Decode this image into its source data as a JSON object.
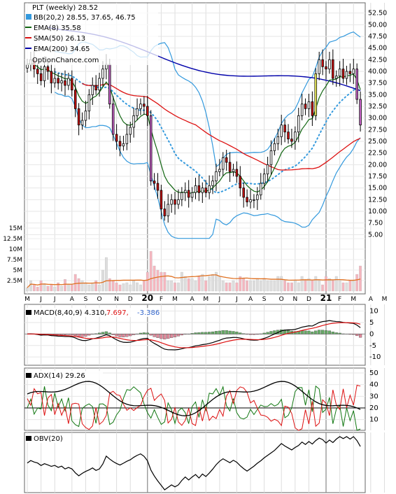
{
  "chart_data": [
    {
      "type": "candlestick",
      "panel": "price",
      "legend": {
        "title": "PLT (weekly) 28.52",
        "items": [
          {
            "label": "BB(20,2) 28.55, 37.65, 46.75",
            "color": "#3399dd",
            "marker": "square"
          },
          {
            "label": "EMA(8) 35.58",
            "color": "#116611",
            "marker": "line"
          },
          {
            "label": "SMA(50) 26.13",
            "color": "#dd1111",
            "marker": "line"
          },
          {
            "label": "EMA(200) 34.65",
            "color": "#0000aa",
            "marker": "line"
          }
        ],
        "watermark": "OptionChance.com"
      },
      "y_ticks": [
        "52.50",
        "50.00",
        "47.50",
        "45.00",
        "42.50",
        "40.00",
        "37.50",
        "35.00",
        "32.50",
        "30.00",
        "27.50",
        "25.00",
        "22.50",
        "20.00",
        "17.50",
        "15.00",
        "12.50",
        "10.00",
        "7.50",
        "5.00"
      ],
      "ylim": [
        4,
        53.5
      ],
      "x_labels": [
        {
          "label": "M",
          "week": 0
        },
        {
          "label": "J",
          "week": 4
        },
        {
          "label": "J",
          "week": 8
        },
        {
          "label": "A",
          "week": 13
        },
        {
          "label": "S",
          "week": 17
        },
        {
          "label": "O",
          "week": 21
        },
        {
          "label": "N",
          "week": 26
        },
        {
          "label": "D",
          "week": 30
        },
        {
          "label": "20",
          "week": 35,
          "bold": true
        },
        {
          "label": "F",
          "week": 39
        },
        {
          "label": "M",
          "week": 43
        },
        {
          "label": "A",
          "week": 48
        },
        {
          "label": "M",
          "week": 52
        },
        {
          "label": "J",
          "week": 56
        },
        {
          "label": "J",
          "week": 61
        },
        {
          "label": "A",
          "week": 65
        },
        {
          "label": "S",
          "week": 69
        },
        {
          "label": "O",
          "week": 74
        },
        {
          "label": "N",
          "week": 78
        },
        {
          "label": "D",
          "week": 82
        },
        {
          "label": "21",
          "week": 87,
          "bold": true
        },
        {
          "label": "F",
          "week": 91
        },
        {
          "label": "M",
          "week": 95
        },
        {
          "label": "A",
          "week": 100
        },
        {
          "label": "M",
          "week": 104
        }
      ],
      "candles": [
        {
          "c": 41.5
        },
        {
          "c": 42.5
        },
        {
          "c": 40.5
        },
        {
          "c": 39.5
        },
        {
          "c": 38.0
        },
        {
          "c": 41.0
        },
        {
          "c": 40.0
        },
        {
          "c": 37.5
        },
        {
          "c": 38.5
        },
        {
          "c": 37.5
        },
        {
          "c": 38.0
        },
        {
          "c": 37.0
        },
        {
          "c": 38.5
        },
        {
          "c": 36.0
        },
        {
          "c": 32.0
        },
        {
          "c": 28.5
        },
        {
          "c": 29.5
        },
        {
          "c": 31.5
        },
        {
          "c": 35.0
        },
        {
          "c": 37.0
        },
        {
          "c": 36.0
        },
        {
          "c": 38.5
        },
        {
          "c": 40.5
        },
        {
          "c": 41.5
        },
        {
          "c": 33.0
        },
        {
          "c": 26.5
        },
        {
          "c": 25.0
        },
        {
          "c": 24.0
        },
        {
          "c": 24.5
        },
        {
          "c": 26.5
        },
        {
          "c": 28.0
        },
        {
          "c": 30.5
        },
        {
          "c": 32.0
        },
        {
          "c": 33.0
        },
        {
          "c": 32.5
        },
        {
          "c": 30.5
        },
        {
          "c": 16.5
        },
        {
          "c": 16.0
        },
        {
          "c": 14.5
        },
        {
          "c": 10.5
        },
        {
          "c": 9.0
        },
        {
          "c": 11.5
        },
        {
          "c": 12.5
        },
        {
          "c": 11.5
        },
        {
          "c": 12.5
        },
        {
          "c": 14.0
        },
        {
          "c": 14.5
        },
        {
          "c": 13.0
        },
        {
          "c": 14.0
        },
        {
          "c": 15.5
        },
        {
          "c": 14.0
        },
        {
          "c": 15.0
        },
        {
          "c": 14.0
        },
        {
          "c": 15.5
        },
        {
          "c": 16.5
        },
        {
          "c": 18.5
        },
        {
          "c": 19.0
        },
        {
          "c": 21.5
        },
        {
          "c": 20.5
        },
        {
          "c": 18.5
        },
        {
          "c": 19.0
        },
        {
          "c": 17.5
        },
        {
          "c": 15.0
        },
        {
          "c": 13.0
        },
        {
          "c": 12.0
        },
        {
          "c": 12.5
        },
        {
          "c": 12.5
        },
        {
          "c": 13.5
        },
        {
          "c": 16.0
        },
        {
          "c": 18.0
        },
        {
          "c": 20.0
        },
        {
          "c": 23.0
        },
        {
          "c": 24.5
        },
        {
          "c": 26.0
        },
        {
          "c": 28.5
        },
        {
          "c": 27.0
        },
        {
          "c": 25.5
        },
        {
          "c": 25.0
        },
        {
          "c": 27.0
        },
        {
          "c": 30.5
        },
        {
          "c": 33.0
        },
        {
          "c": 32.0
        },
        {
          "c": 33.5
        },
        {
          "c": 30.5
        },
        {
          "c": 39.5
        },
        {
          "c": 42.5
        },
        {
          "c": 41.0
        },
        {
          "c": 40.5
        },
        {
          "c": 42.5
        },
        {
          "c": 38.5
        },
        {
          "c": 39.0
        },
        {
          "c": 40.5
        },
        {
          "c": 38.5
        },
        {
          "c": 40.0
        },
        {
          "c": 39.5
        },
        {
          "c": 40.5
        },
        {
          "c": 34.0
        },
        {
          "c": 28.5
        }
      ],
      "ema8": "derived",
      "sma50": "derived",
      "ema200_start": 49.5,
      "ema200_end": 34.65
    },
    {
      "type": "bar",
      "panel": "volume",
      "y_ticks": [
        "15M",
        "12.5M",
        "10M",
        "7.5M",
        "5M",
        "2.5M"
      ],
      "ylim": [
        0,
        16000000
      ],
      "values_millions": [
        0.8,
        2.5,
        1.5,
        1.0,
        2.5,
        1.8,
        1.2,
        1.5,
        1.0,
        2.0,
        1.2,
        2.8,
        1.5,
        1.5,
        4.0,
        3.0,
        2.5,
        2.0,
        1.5,
        2.0,
        2.5,
        1.5,
        5.0,
        8.0,
        3.0,
        2.5,
        2.0,
        1.5,
        1.8,
        2.0,
        1.5,
        2.5,
        2.0,
        1.5,
        2.5,
        4.5,
        9.5,
        6.0,
        5.0,
        4.5,
        4.5,
        2.5,
        2.5,
        2.0,
        2.0,
        4.5,
        3.5,
        3.0,
        3.0,
        2.5,
        3.5,
        4.0,
        2.5,
        3.5,
        4.0,
        4.5,
        3.5,
        2.5,
        2.0,
        2.0,
        2.5,
        2.0,
        3.5,
        3.0,
        2.5,
        2.5,
        2.5,
        3.0,
        2.5,
        3.0,
        2.5,
        2.5,
        2.5,
        3.5,
        3.5,
        2.5,
        2.0,
        2.0,
        2.5,
        2.0,
        3.5,
        2.5,
        3.0,
        2.5,
        3.5,
        2.5,
        1.5,
        3.5,
        3.0,
        2.5,
        3.5,
        2.5,
        2.0,
        2.0,
        2.5,
        2.5,
        4.0,
        6.0
      ],
      "ma_line": "derived"
    },
    {
      "type": "line",
      "panel": "macd",
      "label_prefix": "MACD(8,40,9) 4.310,",
      "label_signal": "7.697,",
      "label_hist": "-3.386",
      "y_ticks": [
        "10",
        "5",
        "0",
        "-5",
        "-10"
      ],
      "ylim": [
        -13,
        12
      ]
    },
    {
      "type": "line",
      "panel": "adx",
      "label": "ADX(14) 29.26",
      "y_ticks": [
        "50",
        "40",
        "30",
        "20",
        "10"
      ],
      "ylim": [
        2,
        53
      ],
      "ref_line": 20
    },
    {
      "type": "line",
      "panel": "obv",
      "label": "OBV(20)"
    }
  ]
}
